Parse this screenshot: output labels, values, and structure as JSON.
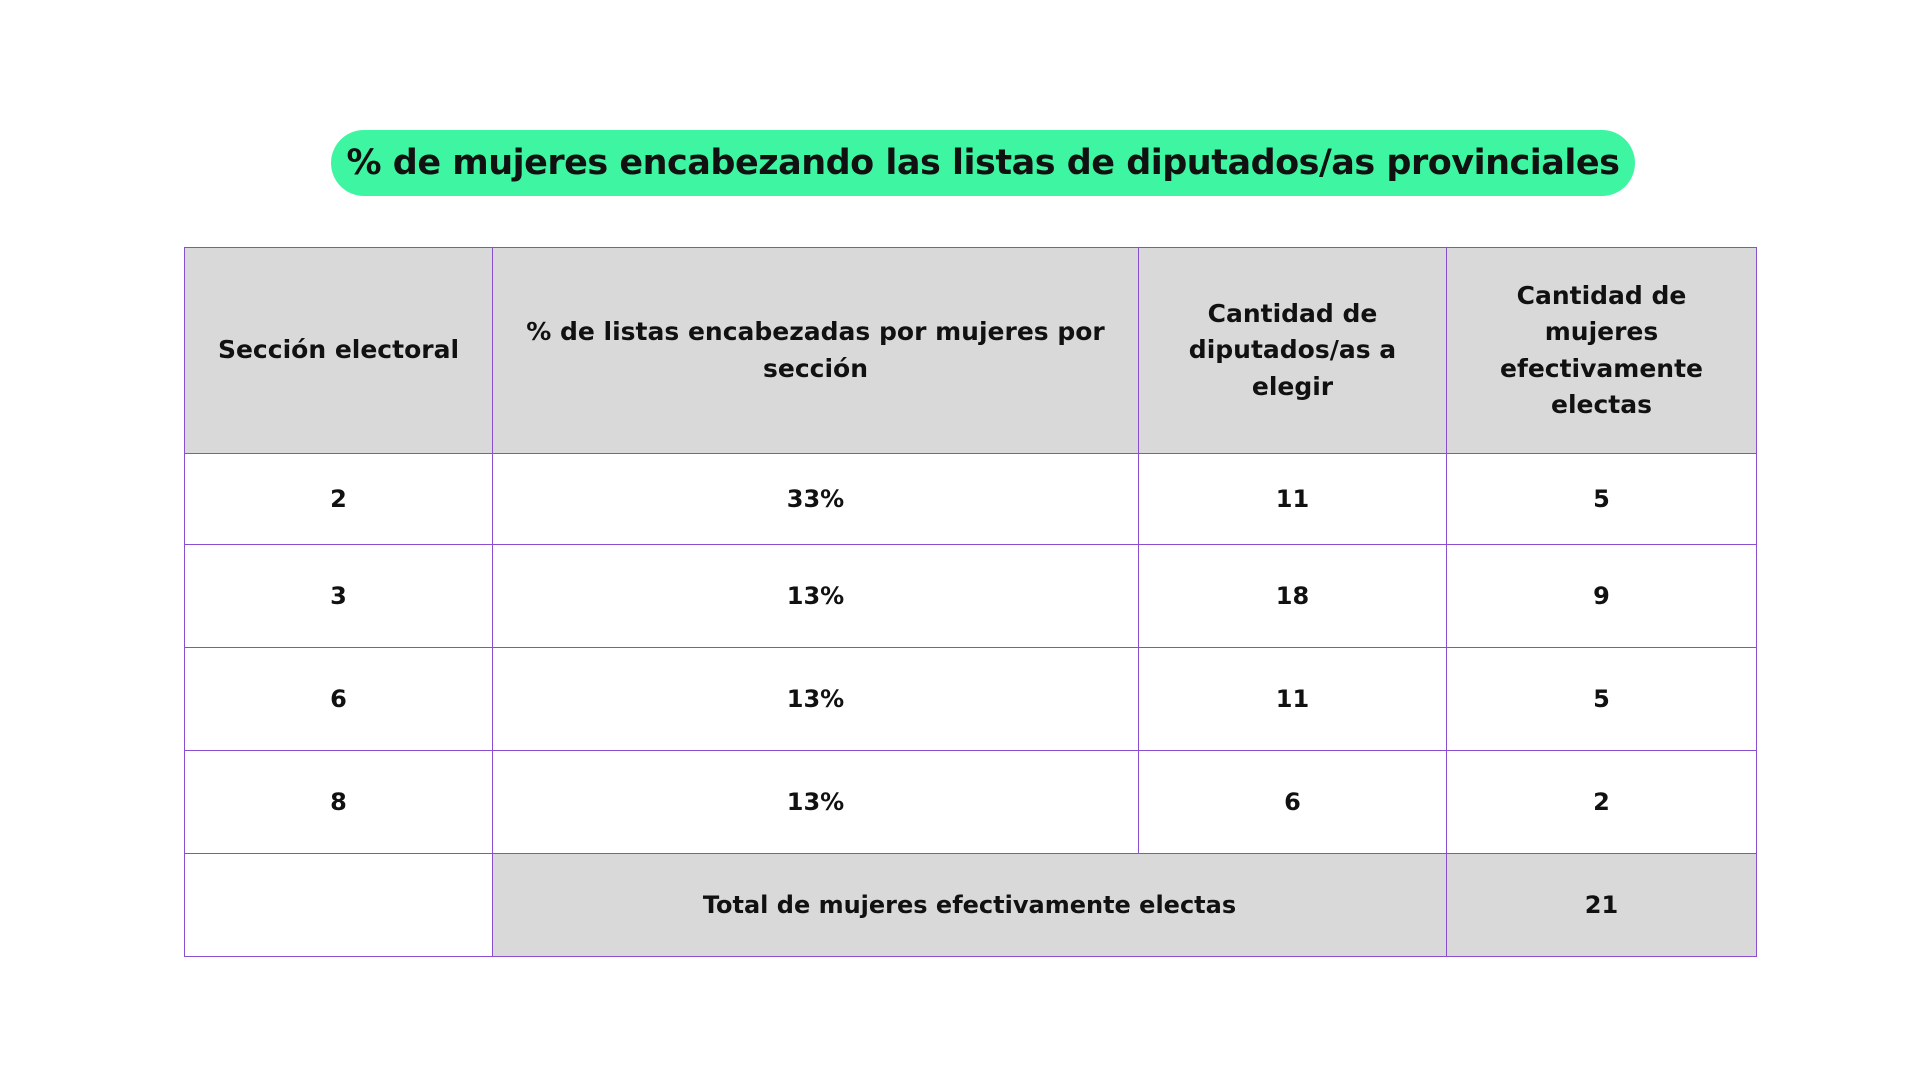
{
  "title": "% de mujeres encabezando las listas de diputados/as provinciales",
  "table": {
    "header": [
      "Sección electoral",
      "% de listas encabezadas por mujeres por sección",
      "Cantidad de diputados/as a elegir",
      "Cantidad de mujeres efectivamente electas"
    ],
    "rows": [
      [
        "2",
        "33%",
        "11",
        "5"
      ],
      [
        "3",
        "13%",
        "18",
        "9"
      ],
      [
        "6",
        "13%",
        "11",
        "5"
      ],
      [
        "8",
        "13%",
        "6",
        "2"
      ]
    ],
    "total": {
      "label": "Total de mujeres efectivamente electas",
      "value": "21"
    }
  }
}
